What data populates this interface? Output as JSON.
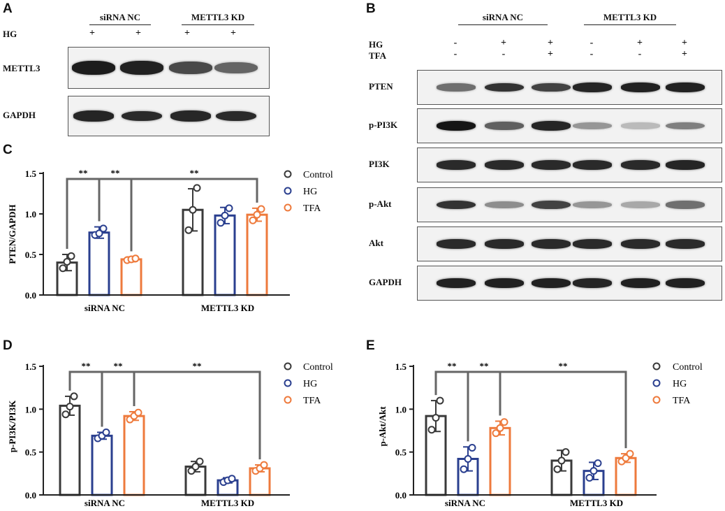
{
  "panel_labels": {
    "a": "A",
    "b": "B",
    "c": "C",
    "d": "D",
    "e": "E"
  },
  "blot_a": {
    "groups": [
      "siRNA NC",
      "METTL3 KD"
    ],
    "row_label": "HG",
    "signs": [
      "+",
      "+",
      "+",
      "+"
    ],
    "proteins": [
      "METTL3",
      "GAPDH"
    ],
    "bands": [
      {
        "protein": "METTL3",
        "intensity": [
          0.92,
          0.9,
          0.72,
          0.6
        ]
      },
      {
        "protein": "GAPDH",
        "intensity": [
          0.88,
          0.86,
          0.87,
          0.86
        ]
      }
    ]
  },
  "blot_b": {
    "groups": [
      "siRNA NC",
      "METTL3 KD"
    ],
    "treatment_rows": [
      {
        "label": "HG",
        "signs": [
          "-",
          "+",
          "+",
          "-",
          "+",
          "+"
        ]
      },
      {
        "label": "TFA",
        "signs": [
          "-",
          "-",
          "+",
          "-",
          "-",
          "+"
        ]
      }
    ],
    "proteins": [
      "PTEN",
      "p-PI3K",
      "PI3K",
      "p-Akt",
      "Akt",
      "GAPDH"
    ],
    "bands": [
      {
        "protein": "PTEN",
        "intensity": [
          0.55,
          0.82,
          0.75,
          0.88,
          0.9,
          0.9
        ]
      },
      {
        "protein": "p-PI3K",
        "intensity": [
          0.95,
          0.62,
          0.88,
          0.38,
          0.22,
          0.48
        ]
      },
      {
        "protein": "PI3K",
        "intensity": [
          0.86,
          0.86,
          0.86,
          0.86,
          0.86,
          0.88
        ]
      },
      {
        "protein": "p-Akt",
        "intensity": [
          0.82,
          0.42,
          0.75,
          0.38,
          0.3,
          0.55
        ]
      },
      {
        "protein": "Akt",
        "intensity": [
          0.86,
          0.86,
          0.86,
          0.86,
          0.86,
          0.86
        ]
      },
      {
        "protein": "GAPDH",
        "intensity": [
          0.9,
          0.9,
          0.9,
          0.88,
          0.9,
          0.9
        ]
      }
    ]
  },
  "colors": {
    "control": "#3a3a3a",
    "hg": "#2a3f8f",
    "tfa": "#ee7a3c",
    "bracket": "#666666",
    "axis": "#222222"
  },
  "chart_data": [
    {
      "id": "C",
      "type": "bar",
      "ylabel": "PTEN/GAPDH",
      "categories": [
        "siRNA NC",
        "METTL3 KD"
      ],
      "ylim": [
        0,
        1.5
      ],
      "yticks": [
        "0.0",
        "0.5",
        "1.0",
        "1.5"
      ],
      "legend": [
        "Control",
        "HG",
        "TFA"
      ],
      "legend_position": "top-right",
      "series": [
        {
          "name": "Control",
          "values": [
            0.4,
            1.05
          ],
          "sd": [
            0.1,
            0.26
          ],
          "points": [
            [
              0.33,
              0.41,
              0.48
            ],
            [
              0.8,
              1.05,
              1.32
            ]
          ]
        },
        {
          "name": "HG",
          "values": [
            0.77,
            0.98
          ],
          "sd": [
            0.07,
            0.1
          ],
          "points": [
            [
              0.74,
              0.76,
              0.82
            ],
            [
              0.89,
              0.98,
              1.07
            ]
          ]
        },
        {
          "name": "TFA",
          "values": [
            0.44,
            0.99
          ],
          "sd": [
            0.03,
            0.08
          ],
          "points": [
            [
              0.43,
              0.44,
              0.45
            ],
            [
              0.92,
              0.99,
              1.06
            ]
          ]
        }
      ],
      "significance": [
        {
          "from": [
            0,
            0
          ],
          "to": [
            0,
            1
          ],
          "text": "**"
        },
        {
          "from": [
            0,
            1
          ],
          "to": [
            0,
            2
          ],
          "text": "**"
        },
        {
          "from": [
            0,
            2
          ],
          "to": [
            1,
            2
          ],
          "text": "**"
        }
      ]
    },
    {
      "id": "D",
      "type": "bar",
      "ylabel": "p-PI3K/PI3K",
      "categories": [
        "siRNA NC",
        "METTL3 KD"
      ],
      "ylim": [
        0,
        1.5
      ],
      "yticks": [
        "0.0",
        "0.5",
        "1.0",
        "1.5"
      ],
      "legend": [
        "Control",
        "HG",
        "TFA"
      ],
      "legend_position": "top-right",
      "series": [
        {
          "name": "Control",
          "values": [
            1.04,
            0.33
          ],
          "sd": [
            0.11,
            0.06
          ],
          "points": [
            [
              0.94,
              1.03,
              1.15
            ],
            [
              0.28,
              0.33,
              0.39
            ]
          ]
        },
        {
          "name": "HG",
          "values": [
            0.69,
            0.17
          ],
          "sd": [
            0.04,
            0.03
          ],
          "points": [
            [
              0.66,
              0.69,
              0.73
            ],
            [
              0.15,
              0.17,
              0.19
            ]
          ]
        },
        {
          "name": "TFA",
          "values": [
            0.92,
            0.31
          ],
          "sd": [
            0.05,
            0.04
          ],
          "points": [
            [
              0.88,
              0.92,
              0.96
            ],
            [
              0.28,
              0.31,
              0.35
            ]
          ]
        }
      ],
      "significance": [
        {
          "from": [
            0,
            0
          ],
          "to": [
            0,
            1
          ],
          "text": "**"
        },
        {
          "from": [
            0,
            1
          ],
          "to": [
            0,
            2
          ],
          "text": "**"
        },
        {
          "from": [
            0,
            2
          ],
          "to": [
            1,
            2
          ],
          "text": "**"
        }
      ]
    },
    {
      "id": "E",
      "type": "bar",
      "ylabel": "p-Akt/Akt",
      "categories": [
        "siRNA NC",
        "METTL3 KD"
      ],
      "ylim": [
        0,
        1.5
      ],
      "yticks": [
        "0.0",
        "0.5",
        "1.0",
        "1.5"
      ],
      "legend": [
        "Control",
        "HG",
        "TFA"
      ],
      "legend_position": "top-right",
      "series": [
        {
          "name": "Control",
          "values": [
            0.92,
            0.4
          ],
          "sd": [
            0.18,
            0.12
          ],
          "points": [
            [
              0.76,
              0.9,
              1.1
            ],
            [
              0.3,
              0.4,
              0.5
            ]
          ]
        },
        {
          "name": "HG",
          "values": [
            0.42,
            0.28
          ],
          "sd": [
            0.14,
            0.1
          ],
          "points": [
            [
              0.3,
              0.42,
              0.55
            ],
            [
              0.2,
              0.28,
              0.37
            ]
          ]
        },
        {
          "name": "TFA",
          "values": [
            0.78,
            0.43
          ],
          "sd": [
            0.08,
            0.05
          ],
          "points": [
            [
              0.72,
              0.78,
              0.85
            ],
            [
              0.39,
              0.43,
              0.48
            ]
          ]
        }
      ],
      "significance": [
        {
          "from": [
            0,
            0
          ],
          "to": [
            0,
            1
          ],
          "text": "**"
        },
        {
          "from": [
            0,
            1
          ],
          "to": [
            0,
            2
          ],
          "text": "**"
        },
        {
          "from": [
            0,
            2
          ],
          "to": [
            1,
            2
          ],
          "text": "**"
        }
      ]
    }
  ]
}
